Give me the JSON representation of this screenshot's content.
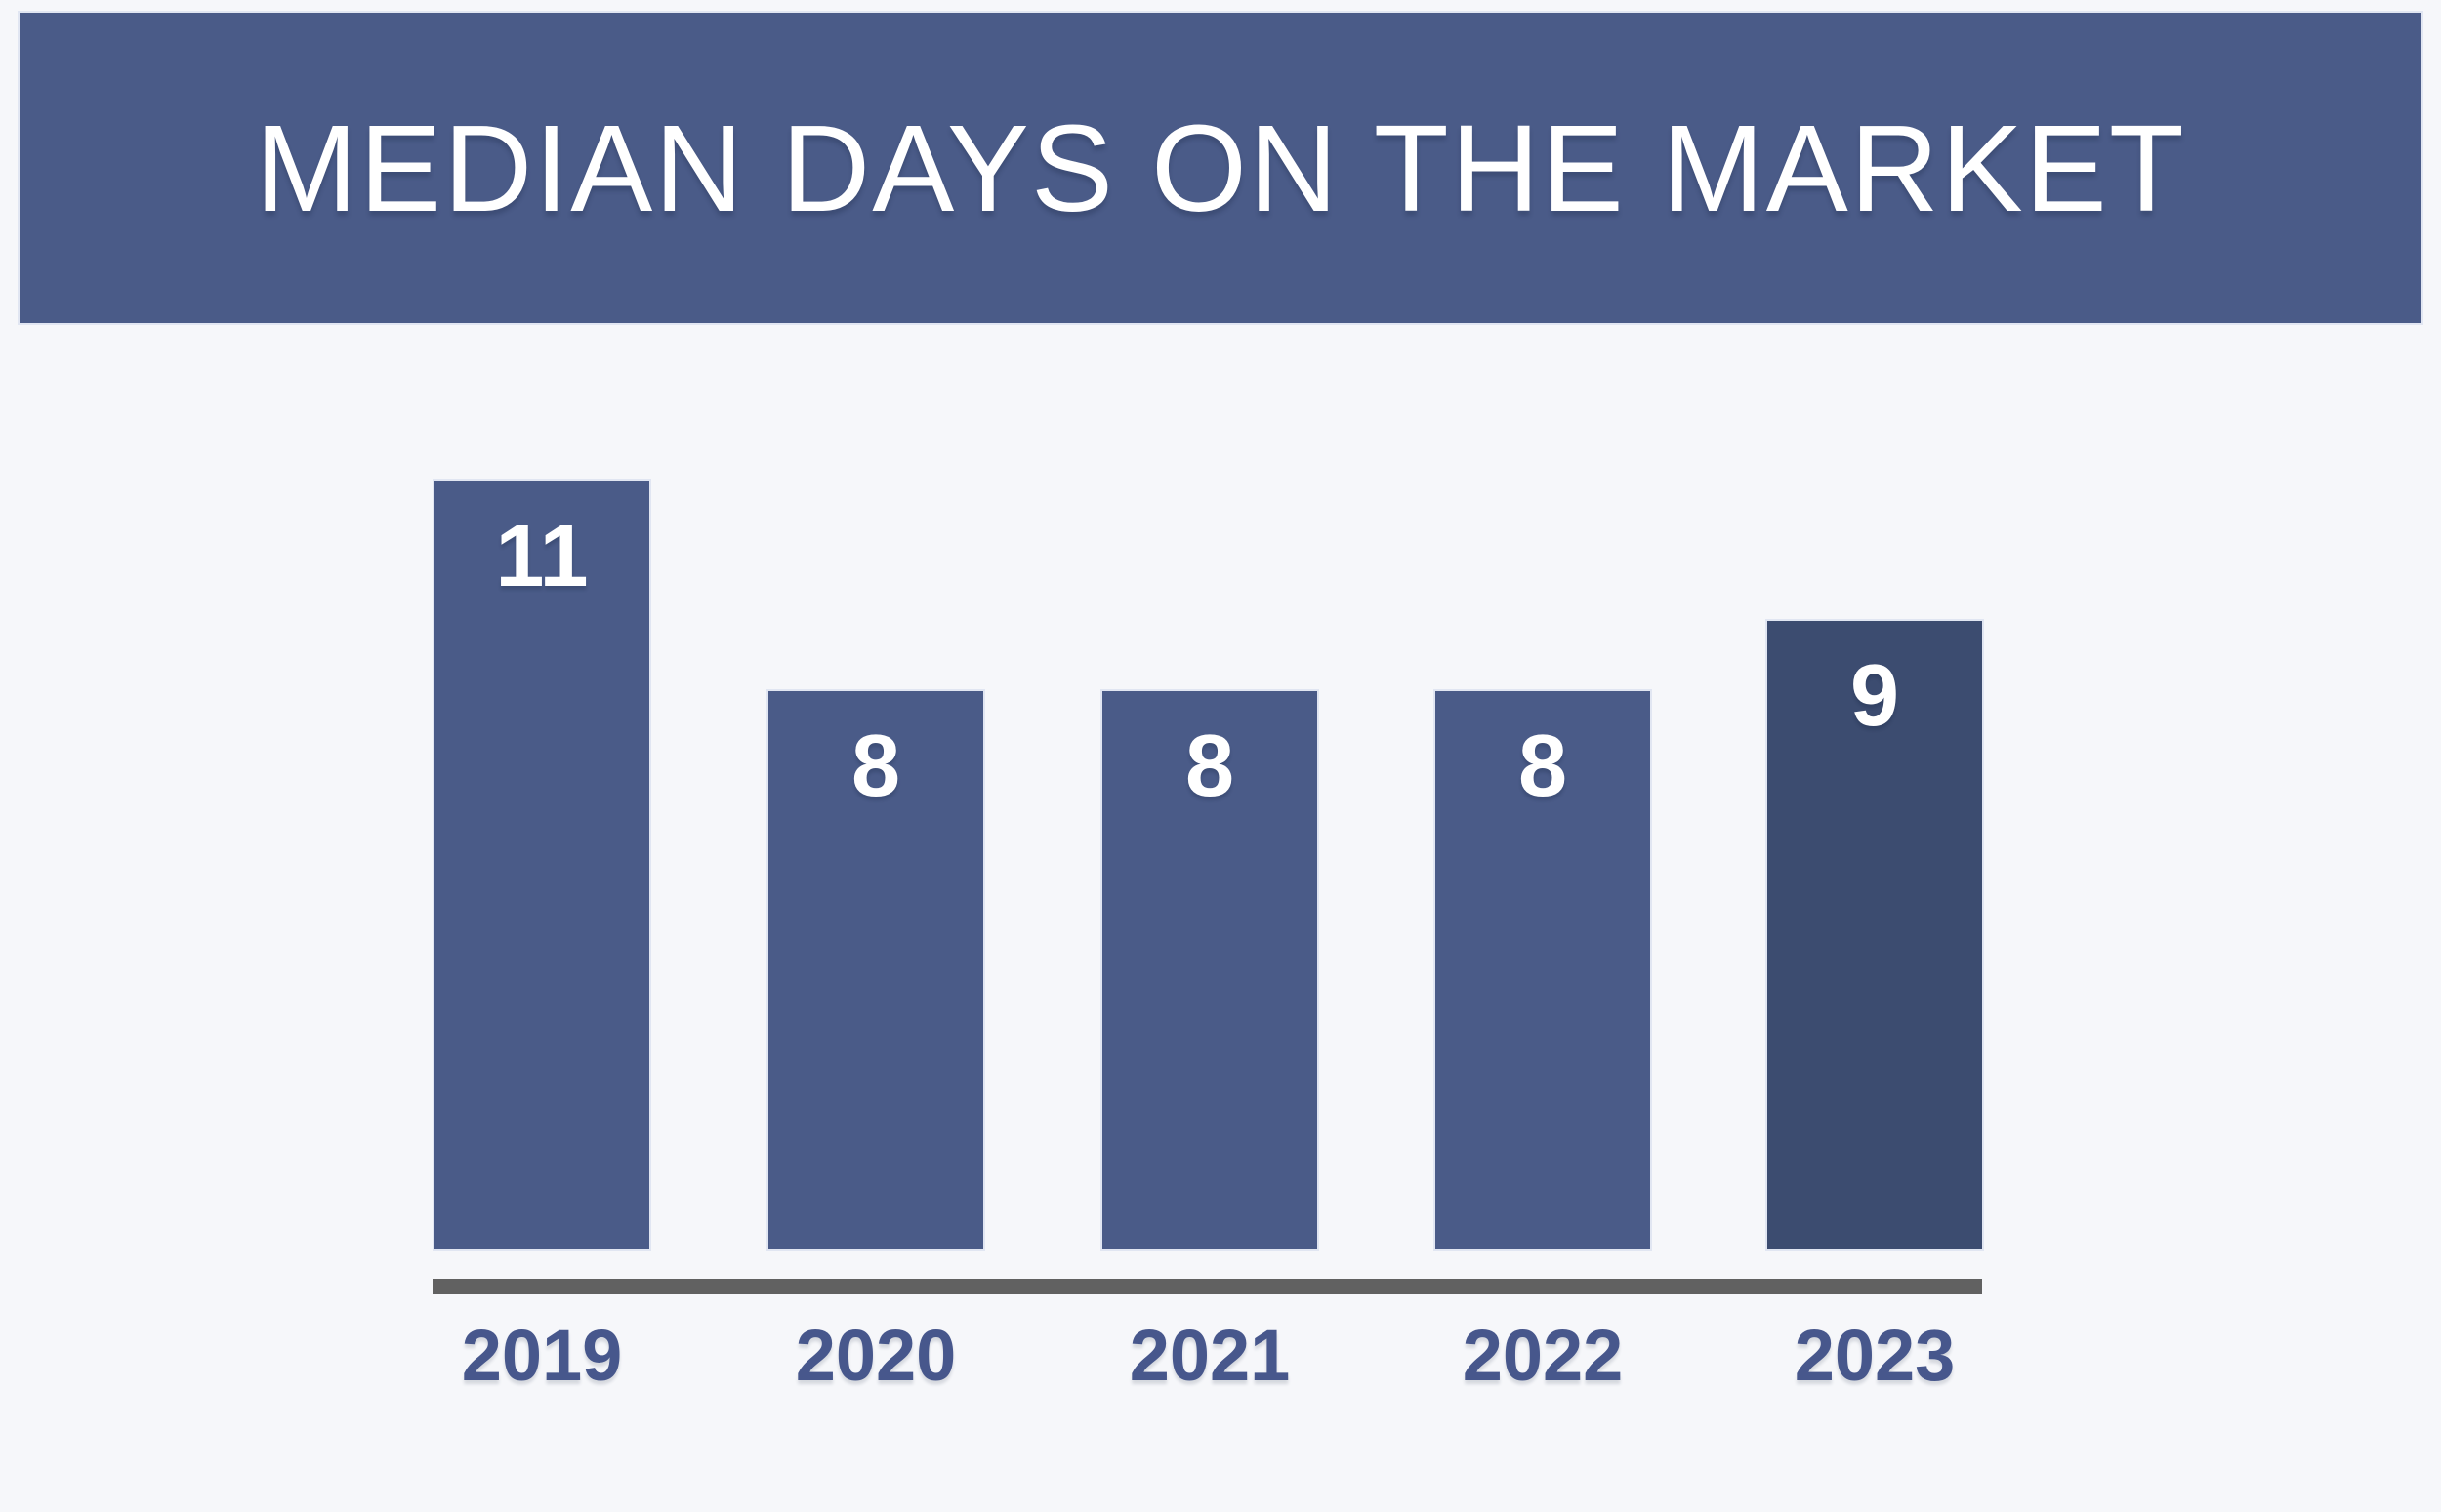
{
  "page": {
    "background": "#F6F7FA"
  },
  "header": {
    "title": "MEDIAN DAYS ON THE MARKET",
    "background": "#4A5B88",
    "text_color": "#FFFFFF"
  },
  "chart_data": {
    "type": "bar",
    "title": "MEDIAN DAYS ON THE MARKET",
    "categories": [
      "2019",
      "2020",
      "2021",
      "2022",
      "2023"
    ],
    "values": [
      11,
      8,
      8,
      8,
      9
    ],
    "bar_colors": [
      "#4A5B88",
      "#4A5B88",
      "#4A5B88",
      "#4A5B88",
      "#3C4C70"
    ],
    "value_label_color": "#FFFFFF",
    "category_label_color": "#47578C",
    "axis_line_color": "#616161",
    "xlabel": "",
    "ylabel": "",
    "ylim": [
      0,
      11
    ],
    "grid": false,
    "legend": false,
    "value_label_position": "inside-top"
  }
}
